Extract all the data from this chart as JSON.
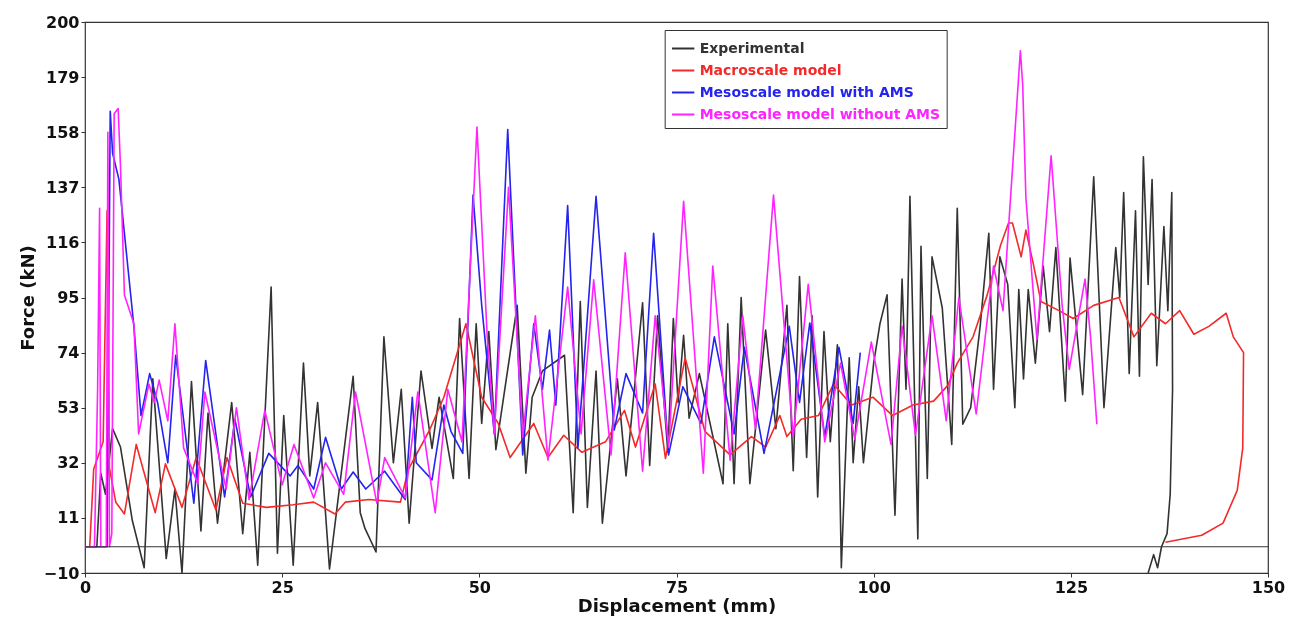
{
  "chart_data": {
    "type": "line",
    "xlabel": "Displacement (mm)",
    "ylabel": "Force (kN)",
    "xlim": [
      0,
      150
    ],
    "ylim": [
      -10,
      200
    ],
    "xticks": [
      0,
      25,
      50,
      75,
      100,
      125,
      150
    ],
    "yticks": [
      -10,
      11,
      32,
      53,
      74,
      95,
      116,
      137,
      158,
      179,
      200
    ],
    "legend": "top",
    "line_style": "solid",
    "ref_lines": [
      {
        "axis": "y",
        "value": 0,
        "color": "#333333"
      }
    ],
    "series": [
      {
        "name": "Experimental",
        "color": "#333333",
        "x": [
          0,
          1.5,
          2,
          2.6,
          3.5,
          4.5,
          6,
          7.5,
          8.6,
          10.3,
          11.4,
          12.3,
          13.5,
          14.7,
          15.6,
          16.8,
          18.6,
          20,
          20.9,
          21.9,
          23.6,
          24.4,
          25.2,
          26.4,
          27.7,
          28.5,
          29.5,
          31,
          34,
          34.9,
          35.5,
          36.9,
          37.9,
          39.1,
          40.1,
          41.1,
          42.6,
          44,
          44.9,
          46.7,
          47.5,
          48.7,
          49.6,
          50.3,
          51.2,
          52.1,
          54.8,
          55.9,
          56.7,
          58,
          60.8,
          61.9,
          62.8,
          63.7,
          64.8,
          65.6,
          67.5,
          68.6,
          70.7,
          71.6,
          72.6,
          73.9,
          74.6,
          75.2,
          75.9,
          76.6,
          77.9,
          80.9,
          81.5,
          82.3,
          83.2,
          84.3,
          86.3,
          87.6,
          89,
          89.8,
          90.6,
          91.5,
          92.2,
          92.9,
          93.7,
          94.5,
          95.4,
          95.9,
          96.9,
          97.4,
          98.1,
          98.7,
          100,
          100.8,
          101.7,
          102.7,
          103.6,
          104.1,
          104.6,
          105.6,
          106,
          106.8,
          107.4,
          108.7,
          109.9,
          110.6,
          111.3,
          112.3,
          113.5,
          114.6,
          115.2,
          116,
          117,
          117.9,
          118.4,
          119,
          119.6,
          120.5,
          121.5,
          122.3,
          123.1,
          124.3,
          124.9,
          126.5,
          127.9,
          129.2,
          130.7,
          131.2,
          131.7,
          132.4,
          133.2,
          133.7,
          134.2,
          134.8,
          135.3,
          135.9,
          136.8,
          137.3,
          137.8,
          137.9,
          137.6,
          137.2,
          136.5,
          136,
          135.5,
          134.8
        ],
        "values": [
          0,
          0,
          28,
          20,
          45,
          38,
          10,
          -8,
          64,
          -4.5,
          22,
          -10,
          63,
          6,
          51,
          9,
          55,
          5,
          36,
          -7,
          99,
          -2.5,
          50,
          -7,
          70,
          27,
          55,
          -8.5,
          65,
          13,
          7,
          -2,
          80,
          32,
          60,
          9,
          67,
          37.5,
          57,
          26,
          87,
          26,
          85,
          47,
          82,
          37,
          92,
          28,
          57,
          67,
          73,
          13,
          93.5,
          15,
          67,
          9,
          64,
          27,
          93,
          31,
          88,
          36,
          87,
          55,
          80.6,
          49,
          66,
          24,
          85,
          24,
          95,
          24,
          82.6,
          45,
          92,
          29,
          103,
          34,
          88,
          19,
          82,
          40,
          77,
          -8,
          72,
          32,
          61,
          32,
          70,
          85,
          96,
          12,
          102,
          60,
          133.6,
          3,
          114.5,
          26,
          110.5,
          91,
          39,
          129,
          46.7,
          53,
          84,
          119.5,
          60,
          110.5,
          100,
          53,
          98,
          64,
          98,
          70,
          107,
          82,
          114,
          55.5,
          110,
          58,
          141,
          53,
          114,
          95,
          135,
          66,
          128,
          65,
          148.6,
          100,
          140,
          69,
          122,
          90,
          135,
          60,
          20,
          5,
          0,
          -8,
          -3,
          -10
        ]
      },
      {
        "name": "Macroscale model",
        "color": "#f22a2a",
        "x": [
          0,
          0.6,
          1.1,
          2.3,
          2.8,
          3.1,
          3.9,
          5,
          6.5,
          8.9,
          10.2,
          12.3,
          14.1,
          16.6,
          18,
          20,
          23,
          26.4,
          29,
          31.7,
          33,
          36,
          40,
          41,
          43.7,
          45.5,
          48.3,
          50.3,
          52.4,
          53.9,
          56.9,
          58.7,
          60.7,
          63,
          66,
          68.4,
          69.8,
          72.3,
          73.6,
          76.1,
          78.6,
          81.8,
          84.5,
          86.3,
          88.1,
          89,
          90.8,
          93,
          94.9,
          97.2,
          99.9,
          102.4,
          105,
          107.6,
          109.4,
          110.6,
          112.6,
          114.4,
          116.1,
          117.1,
          117.6,
          118.7,
          119.3,
          120.3,
          121.2,
          123.5,
          125.3,
          127.9,
          131.1,
          133,
          135.2,
          137,
          138.8,
          140.6,
          142.5,
          144.7,
          145.6,
          146.9,
          146.8,
          146.1,
          144.3,
          141.6,
          137
        ],
        "values": [
          0,
          0,
          29.5,
          40,
          128,
          30,
          17,
          12.5,
          39,
          13,
          31.6,
          15,
          34,
          14,
          34,
          16.6,
          15,
          16,
          17,
          12.5,
          17,
          18,
          17,
          29.5,
          44.5,
          57,
          85,
          57,
          47,
          34,
          47,
          34,
          42.5,
          36,
          40,
          52,
          38,
          62,
          33.7,
          72,
          44,
          35,
          42,
          38,
          50,
          42,
          48.6,
          50,
          62,
          54,
          57,
          50,
          54,
          55.5,
          61.5,
          70,
          80,
          96,
          115,
          123.4,
          123.4,
          110.5,
          120.7,
          107,
          93.5,
          90,
          87,
          92,
          95,
          80,
          89,
          85,
          90,
          81,
          84,
          89,
          80,
          74,
          37.7,
          21.5,
          9,
          4.4,
          1.7
        ]
      },
      {
        "name": "Mesoscale model with AMS",
        "color": "#2424ee",
        "x": [
          0,
          2.8,
          3.2,
          3.5,
          4.3,
          6.2,
          7.1,
          8.2,
          9.2,
          10.5,
          11.5,
          13.8,
          15.3,
          17.7,
          19,
          21,
          23.3,
          26,
          27,
          29,
          30.5,
          32.5,
          34,
          35.6,
          38,
          40.6,
          41.5,
          42,
          44,
          45.5,
          46.4,
          47.9,
          49.2,
          50.3,
          51.9,
          53.6,
          55.5,
          56.9,
          58,
          58.9,
          59.7,
          61.2,
          62.5,
          64.8,
          67.1,
          68.6,
          70.7,
          72.1,
          74,
          75.8,
          78.1,
          79.8,
          82.3,
          83.6,
          86.1,
          89.3,
          90.6,
          91.9,
          93.8,
          95.6,
          97.4,
          98.3
        ],
        "values": [
          0,
          0,
          166,
          150,
          140,
          84,
          50,
          66,
          55,
          32,
          73,
          16.6,
          71,
          19,
          48.6,
          19,
          35.6,
          27,
          31,
          22,
          41.7,
          22,
          28.5,
          22,
          28.8,
          18,
          57,
          32,
          25.5,
          54,
          44,
          35.6,
          134,
          92,
          43,
          159,
          35,
          85,
          60,
          82.6,
          54,
          130,
          37.7,
          133.6,
          44.5,
          66,
          51,
          119.5,
          35,
          61,
          47,
          80,
          43,
          76,
          35.6,
          84,
          55,
          85.3,
          42,
          76,
          47,
          74
        ]
      },
      {
        "name": "Mesoscale model without AMS",
        "color": "#ff24ff",
        "x": [
          0,
          1.2,
          1.6,
          1.85,
          2,
          2.7,
          2.9,
          3.1,
          3.4,
          3.7,
          4.2,
          4.5,
          5,
          6.2,
          6.8,
          8.1,
          8.8,
          9.4,
          10.5,
          11.4,
          12.5,
          14.3,
          15.2,
          17.9,
          19.2,
          20.8,
          22.8,
          25,
          26.5,
          29,
          30.5,
          32.8,
          34.3,
          37,
          38,
          40.6,
          42.2,
          44.4,
          46,
          47.8,
          49.7,
          51,
          51.9,
          53.7,
          55.5,
          57.1,
          58.7,
          61.2,
          62.9,
          64.5,
          66.7,
          68.5,
          70.7,
          72.3,
          74,
          75.9,
          78.4,
          79.6,
          81.8,
          83.4,
          85,
          87.3,
          89.8,
          91.7,
          93.8,
          95.8,
          97.6,
          99.7,
          102.2,
          103.6,
          105.3,
          107.4,
          109.2,
          110.8,
          113,
          115.2,
          116.4,
          118.6,
          118.9,
          119.3,
          120.7,
          122.5,
          123.9,
          124.8,
          126.8,
          127.5,
          128.3
        ],
        "values": [
          0,
          0,
          60,
          129,
          0,
          0,
          158,
          0,
          5,
          165,
          167,
          145,
          96,
          85,
          43,
          62,
          55,
          63.5,
          48,
          85,
          37.7,
          24,
          59,
          22,
          53,
          18,
          52,
          23.6,
          39,
          18.6,
          32,
          20,
          59,
          16.6,
          34,
          18.6,
          59,
          13,
          60,
          40,
          160,
          80,
          43,
          137,
          42,
          88,
          33,
          99,
          43,
          101.7,
          35,
          112,
          28.8,
          88,
          38,
          131.7,
          28,
          107,
          33,
          88,
          45,
          134,
          42,
          100,
          40,
          70,
          41,
          78,
          39,
          84,
          42.5,
          88,
          48,
          95,
          50.6,
          107,
          90,
          189,
          176,
          133,
          79,
          149,
          92,
          67.6,
          102,
          80,
          46.7
        ]
      }
    ]
  }
}
